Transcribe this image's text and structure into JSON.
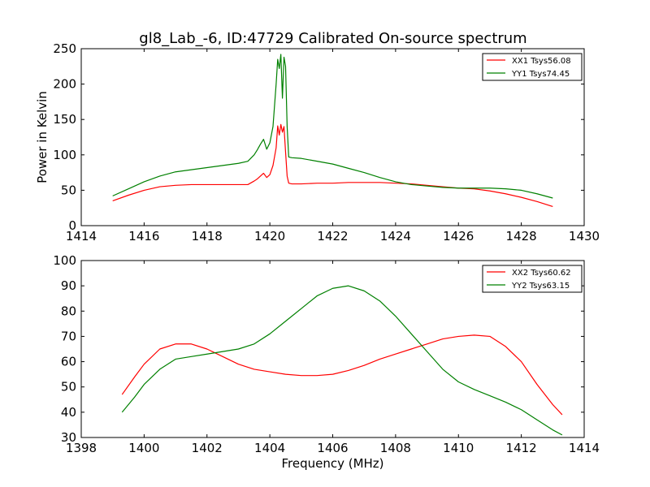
{
  "title": "gl8_Lab_-6, ID:47729 Calibrated On-source spectrum",
  "chart_data": [
    {
      "type": "line",
      "ylabel": "Power in Kelvin",
      "xlabel": "",
      "xlim": [
        1414,
        1430
      ],
      "ylim": [
        0,
        250
      ],
      "xticks": [
        1414,
        1416,
        1418,
        1420,
        1422,
        1424,
        1426,
        1428,
        1430
      ],
      "yticks": [
        0,
        50,
        100,
        150,
        200,
        250
      ],
      "legend_position": "top-right",
      "grid": false,
      "series": [
        {
          "name": "XX1 Tsys56.08",
          "color": "#ff0000",
          "x": [
            1415.0,
            1415.5,
            1416.0,
            1416.5,
            1417.0,
            1417.5,
            1418.0,
            1418.5,
            1419.0,
            1419.3,
            1419.5,
            1419.6,
            1419.7,
            1419.8,
            1419.9,
            1420.0,
            1420.1,
            1420.2,
            1420.25,
            1420.3,
            1420.35,
            1420.4,
            1420.45,
            1420.5,
            1420.55,
            1420.6,
            1420.7,
            1421.0,
            1421.5,
            1422.0,
            1422.5,
            1423.0,
            1423.5,
            1424.0,
            1424.5,
            1425.0,
            1425.5,
            1426.0,
            1426.5,
            1427.0,
            1427.5,
            1428.0,
            1428.5,
            1429.0
          ],
          "y": [
            35,
            43,
            50,
            55,
            57,
            58,
            58,
            58,
            58,
            58,
            63,
            66,
            70,
            74,
            68,
            72,
            85,
            110,
            141,
            128,
            143,
            132,
            140,
            104,
            70,
            60,
            59,
            59,
            60,
            60,
            61,
            61,
            61,
            60,
            59,
            57,
            55,
            53,
            52,
            49,
            45,
            40,
            34,
            27
          ]
        },
        {
          "name": "YY1 Tsys74.45",
          "color": "#008000",
          "x": [
            1415.0,
            1415.5,
            1416.0,
            1416.5,
            1417.0,
            1417.5,
            1418.0,
            1418.5,
            1419.0,
            1419.3,
            1419.5,
            1419.6,
            1419.7,
            1419.8,
            1419.9,
            1420.0,
            1420.1,
            1420.2,
            1420.25,
            1420.3,
            1420.35,
            1420.4,
            1420.45,
            1420.5,
            1420.55,
            1420.6,
            1420.7,
            1421.0,
            1421.5,
            1422.0,
            1422.5,
            1423.0,
            1423.5,
            1424.0,
            1424.5,
            1425.0,
            1425.5,
            1426.0,
            1426.5,
            1427.0,
            1427.5,
            1428.0,
            1428.5,
            1429.0
          ],
          "y": [
            42,
            52,
            62,
            70,
            76,
            79,
            82,
            85,
            88,
            91,
            100,
            107,
            115,
            122,
            108,
            117,
            140,
            200,
            235,
            222,
            242,
            180,
            238,
            225,
            140,
            97,
            96,
            95,
            91,
            87,
            81,
            75,
            68,
            62,
            58,
            56,
            54,
            53,
            53,
            53,
            52,
            50,
            45,
            39
          ]
        }
      ]
    },
    {
      "type": "line",
      "xlabel": "Frequency (MHz)",
      "ylabel": "",
      "xlim": [
        1398,
        1414
      ],
      "ylim": [
        30,
        100
      ],
      "xticks": [
        1398,
        1400,
        1402,
        1404,
        1406,
        1408,
        1410,
        1412,
        1414
      ],
      "yticks": [
        30,
        40,
        50,
        60,
        70,
        80,
        90,
        100
      ],
      "legend_position": "top-right",
      "grid": false,
      "series": [
        {
          "name": "XX2 Tsys60.62",
          "color": "#ff0000",
          "x": [
            1399.3,
            1399.7,
            1400.0,
            1400.5,
            1401.0,
            1401.5,
            1402.0,
            1402.5,
            1403.0,
            1403.5,
            1404.0,
            1404.5,
            1405.0,
            1405.5,
            1406.0,
            1406.5,
            1407.0,
            1407.5,
            1408.0,
            1408.5,
            1409.0,
            1409.5,
            1410.0,
            1410.5,
            1411.0,
            1411.5,
            1412.0,
            1412.5,
            1413.0,
            1413.3
          ],
          "y": [
            47,
            54,
            59,
            65,
            67,
            67,
            65,
            62,
            59,
            57,
            56,
            55,
            54.5,
            54.5,
            55,
            56.5,
            58.5,
            61,
            63,
            65,
            67,
            69,
            70,
            70.5,
            70,
            66,
            60,
            51,
            43,
            39
          ]
        },
        {
          "name": "YY2 Tsys63.15",
          "color": "#008000",
          "x": [
            1399.3,
            1399.7,
            1400.0,
            1400.5,
            1401.0,
            1401.5,
            1402.0,
            1402.5,
            1403.0,
            1403.5,
            1404.0,
            1404.5,
            1405.0,
            1405.5,
            1406.0,
            1406.5,
            1407.0,
            1407.5,
            1408.0,
            1408.5,
            1409.0,
            1409.5,
            1410.0,
            1410.5,
            1411.0,
            1411.5,
            1412.0,
            1412.5,
            1413.0,
            1413.3
          ],
          "y": [
            40,
            46,
            51,
            57,
            61,
            62,
            63,
            64,
            65,
            67,
            71,
            76,
            81,
            86,
            89,
            90,
            88,
            84,
            78,
            71,
            64,
            57,
            52,
            49,
            46.5,
            44,
            41,
            37,
            33,
            31
          ]
        }
      ]
    }
  ]
}
